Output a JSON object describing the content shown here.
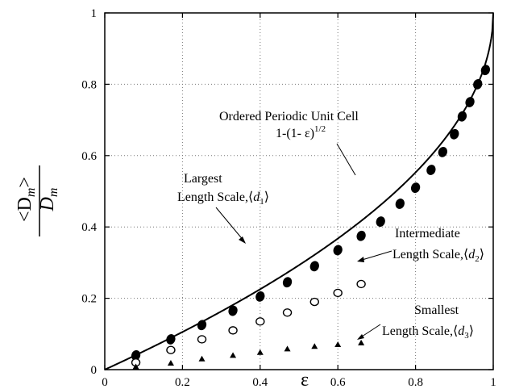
{
  "chart_data": {
    "type": "scatter",
    "xlabel": "ε",
    "ylabel_numerator": "<D",
    "ylabel_numerator_sub": "m",
    "ylabel_numerator_close": ">",
    "ylabel_denominator": "D",
    "ylabel_denominator_sub": "m",
    "xlim": [
      0,
      1
    ],
    "ylim": [
      0,
      1
    ],
    "xticks": [
      "0",
      "0.2",
      "0.4",
      "0.6",
      "0.8",
      "1"
    ],
    "yticks": [
      "0",
      "0.2",
      "0.4",
      "0.6",
      "0.8",
      "1"
    ],
    "grid": true,
    "curve": {
      "formula": "1-(1-ε)^(1/2)",
      "label_line1": "Ordered Periodic Unit Cell",
      "label_line2": "1-(1- ε)",
      "label_line2_sup": "1/2"
    },
    "series": [
      {
        "label_line1": "Largest",
        "label_line2": "Length Scale,",
        "label_symbol": "d",
        "label_sub": "1",
        "marker": "filled-circle",
        "x": [
          0.08,
          0.17,
          0.25,
          0.33,
          0.4,
          0.47,
          0.54,
          0.6,
          0.66,
          0.71,
          0.76,
          0.8,
          0.84,
          0.87,
          0.9,
          0.92,
          0.94,
          0.96,
          0.98
        ],
        "y": [
          0.04,
          0.085,
          0.125,
          0.165,
          0.205,
          0.245,
          0.29,
          0.335,
          0.375,
          0.415,
          0.465,
          0.51,
          0.56,
          0.61,
          0.66,
          0.71,
          0.75,
          0.8,
          0.84
        ]
      },
      {
        "label_line1": "Intermediate",
        "label_line2": "Length Scale,",
        "label_symbol": "d",
        "label_sub": "2",
        "marker": "open-circle",
        "x": [
          0.08,
          0.17,
          0.25,
          0.33,
          0.4,
          0.47,
          0.54,
          0.6,
          0.66
        ],
        "y": [
          0.02,
          0.055,
          0.085,
          0.11,
          0.135,
          0.16,
          0.19,
          0.215,
          0.24
        ]
      },
      {
        "label_line1": "Smallest",
        "label_line2": "Length Scale,",
        "label_symbol": "d",
        "label_sub": "3",
        "marker": "filled-triangle",
        "x": [
          0.08,
          0.17,
          0.25,
          0.33,
          0.4,
          0.47,
          0.54,
          0.6,
          0.66
        ],
        "y": [
          0.008,
          0.018,
          0.03,
          0.04,
          0.048,
          0.058,
          0.065,
          0.07,
          0.075
        ]
      }
    ],
    "colors": {
      "ink": "#000000",
      "grid": "#777777",
      "open_marker_fill": "#ffffff"
    }
  }
}
